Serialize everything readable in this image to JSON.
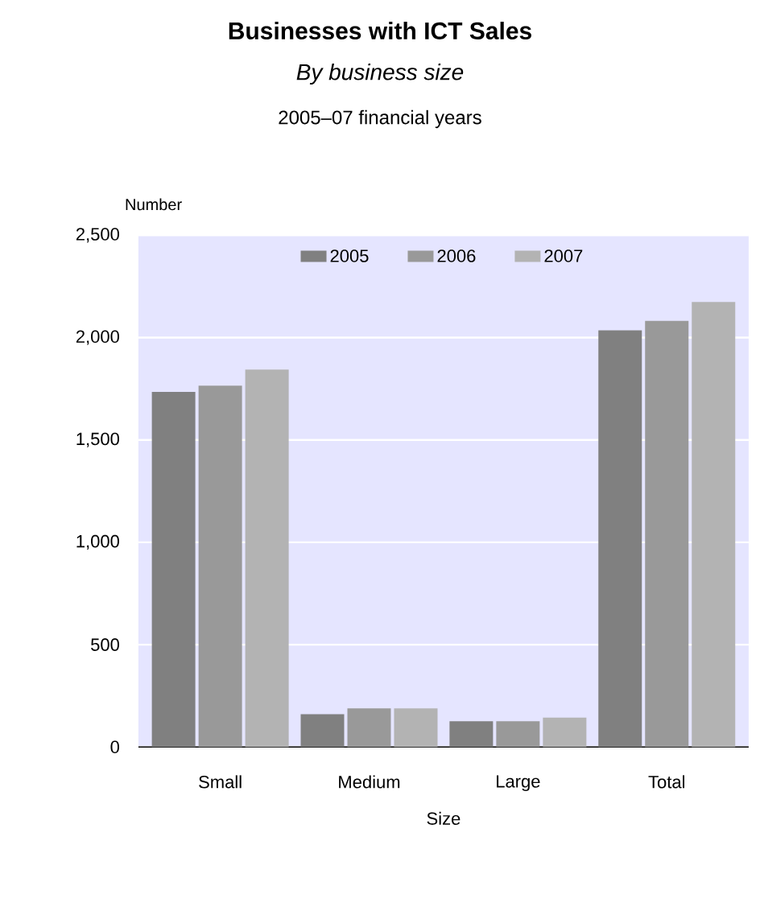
{
  "chart_data": {
    "type": "bar",
    "title": "Businesses with ICT Sales",
    "subtitle": "*By business size*",
    "annotations": [
      "2005–07 financial years"
    ],
    "xlabel": "Size",
    "ylabel": "Number",
    "categories": [
      "Small",
      "Medium",
      "Large",
      "Total"
    ],
    "series": [
      {
        "name": "2005",
        "color": "#808080",
        "values": [
          1735,
          160,
          126,
          2035
        ]
      },
      {
        "name": "2006",
        "color": "#999999",
        "values": [
          1765,
          189,
          126,
          2082
        ]
      },
      {
        "name": "2007",
        "color": "#b3b3b3",
        "values": [
          1844,
          189,
          144,
          2174
        ]
      }
    ],
    "ylim": [
      0,
      2500
    ],
    "yticks": [
      0,
      500,
      {
        "value": 1000,
        "label": "1,000"
      },
      {
        "value": 1500,
        "label": "1,500"
      },
      {
        "value": 2000,
        "label": "2,000"
      },
      {
        "value": 2500,
        "label": "2,500"
      }
    ],
    "grid": "y",
    "legend": "top"
  }
}
